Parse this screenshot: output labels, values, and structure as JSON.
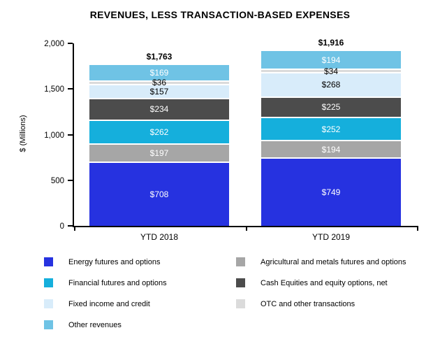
{
  "title": "REVENUES, LESS TRANSACTION-BASED EXPENSES",
  "chart_data": {
    "type": "bar",
    "stacked": true,
    "title": "REVENUES, LESS TRANSACTION-BASED EXPENSES",
    "xlabel": "",
    "ylabel": "$ (Millions)",
    "ylim": [
      0,
      2000
    ],
    "yticks": [
      0,
      500,
      1000,
      1500,
      2000
    ],
    "ytick_labels": [
      "0",
      "500",
      "1,000",
      "1,500",
      "2,000"
    ],
    "grid": false,
    "categories": [
      "YTD 2018",
      "YTD 2019"
    ],
    "totals": [
      "$1,763",
      "$1,916"
    ],
    "series": [
      {
        "name": "Energy futures and options",
        "color": "#2632E0",
        "label_color": "#FFFFFF",
        "values": [
          708,
          749
        ]
      },
      {
        "name": "Agricultural and metals futures and options",
        "color": "#A6A6A6",
        "label_color": "#FFFFFF",
        "values": [
          197,
          194
        ]
      },
      {
        "name": "Financial futures and options",
        "color": "#15AFDC",
        "label_color": "#FFFFFF",
        "values": [
          262,
          252
        ]
      },
      {
        "name": "Cash Equities and equity options, net",
        "color": "#4C4C4C",
        "label_color": "#FFFFFF",
        "values": [
          234,
          225
        ]
      },
      {
        "name": "Fixed income and credit",
        "color": "#D8ECFA",
        "label_color": "#000000",
        "values": [
          157,
          268
        ]
      },
      {
        "name": "OTC and other transactions",
        "color": "#DBDBDB",
        "label_color": "#000000",
        "values": [
          36,
          34
        ]
      },
      {
        "name": "Other revenues",
        "color": "#6FC3E5",
        "label_color": "#FFFFFF",
        "values": [
          169,
          194
        ]
      }
    ],
    "legend": {
      "position": "bottom",
      "left_order": [
        0,
        2,
        4,
        6
      ],
      "right_order": [
        1,
        3,
        5
      ]
    }
  }
}
